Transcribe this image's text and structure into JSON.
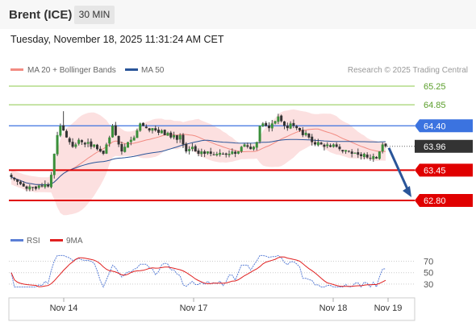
{
  "header": {
    "instrument": "Brent (ICE)",
    "timeframe": "30 MIN"
  },
  "datetime": "Tuesday, November 18, 2025 11:31:24 AM CET",
  "legend": {
    "ma20": {
      "label": "MA 20 + Bollinger Bands",
      "color": "#f28b82"
    },
    "ma50": {
      "label": "MA 50",
      "color": "#2a5599"
    },
    "credit": "Research © 2025 Trading Central"
  },
  "rsi_legend": {
    "rsi": {
      "label": "RSI",
      "color": "#5b7fd6"
    },
    "ma9": {
      "label": "9MA",
      "color": "#e02020"
    }
  },
  "chart_data": {
    "type": "candlestick",
    "price_range": [
      62.55,
      65.45
    ],
    "levels": [
      {
        "value": 65.25,
        "label": "65.25",
        "kind": "target",
        "color": "#8cc84b"
      },
      {
        "value": 64.85,
        "label": "64.85",
        "kind": "target",
        "color": "#8cc84b"
      },
      {
        "value": 64.4,
        "label": "64.40",
        "kind": "pivot",
        "color": "#3b73e0"
      },
      {
        "value": 63.96,
        "label": "63.96",
        "kind": "last",
        "color": "#333333"
      },
      {
        "value": 63.45,
        "label": "63.45",
        "kind": "support",
        "color": "#e00000"
      },
      {
        "value": 62.8,
        "label": "62.80",
        "kind": "support",
        "color": "#e00000"
      }
    ],
    "x_ticks": [
      "Nov 14",
      "Nov 17",
      "Nov 18",
      "Nov 19"
    ],
    "forecast_arrow": {
      "from": 63.96,
      "to": 62.8,
      "direction": "down"
    },
    "close": [
      63.3,
      63.25,
      63.2,
      63.15,
      63.1,
      63.05,
      63.1,
      63.08,
      63.05,
      63.12,
      63.1,
      63.15,
      63.1,
      63.35,
      63.8,
      64.2,
      64.4,
      64.3,
      64.15,
      64.05,
      63.95,
      64.0,
      64.1,
      64.05,
      64.0,
      64.05,
      63.95,
      64.0,
      63.9,
      63.85,
      63.8,
      64.0,
      64.15,
      64.4,
      64.2,
      64.0,
      63.85,
      63.95,
      64.05,
      64.1,
      64.15,
      64.3,
      64.45,
      64.4,
      64.35,
      64.3,
      64.35,
      64.3,
      64.25,
      64.3,
      64.2,
      64.25,
      64.15,
      64.2,
      64.1,
      64.2,
      64.0,
      63.85,
      63.9,
      63.95,
      63.85,
      63.8,
      63.85,
      63.8,
      63.85,
      63.8,
      63.78,
      63.8,
      63.82,
      63.8,
      63.78,
      63.8,
      63.85,
      63.8,
      63.85,
      63.95,
      64.0,
      63.95,
      63.9,
      63.95,
      64.05,
      64.4,
      64.45,
      64.4,
      64.35,
      64.45,
      64.5,
      64.6,
      64.5,
      64.4,
      64.35,
      64.45,
      64.4,
      64.35,
      64.3,
      64.2,
      64.25,
      64.15,
      64.05,
      64.0,
      64.05,
      64.0,
      63.95,
      64.0,
      63.95,
      64.0,
      63.95,
      63.9,
      63.85,
      63.88,
      63.85,
      63.8,
      63.82,
      63.78,
      63.75,
      63.8,
      63.72,
      63.7,
      63.75,
      63.7,
      63.85,
      64.0,
      63.96
    ],
    "rsi": {
      "levels": [
        70,
        50,
        30
      ],
      "range": [
        20,
        82
      ]
    }
  }
}
